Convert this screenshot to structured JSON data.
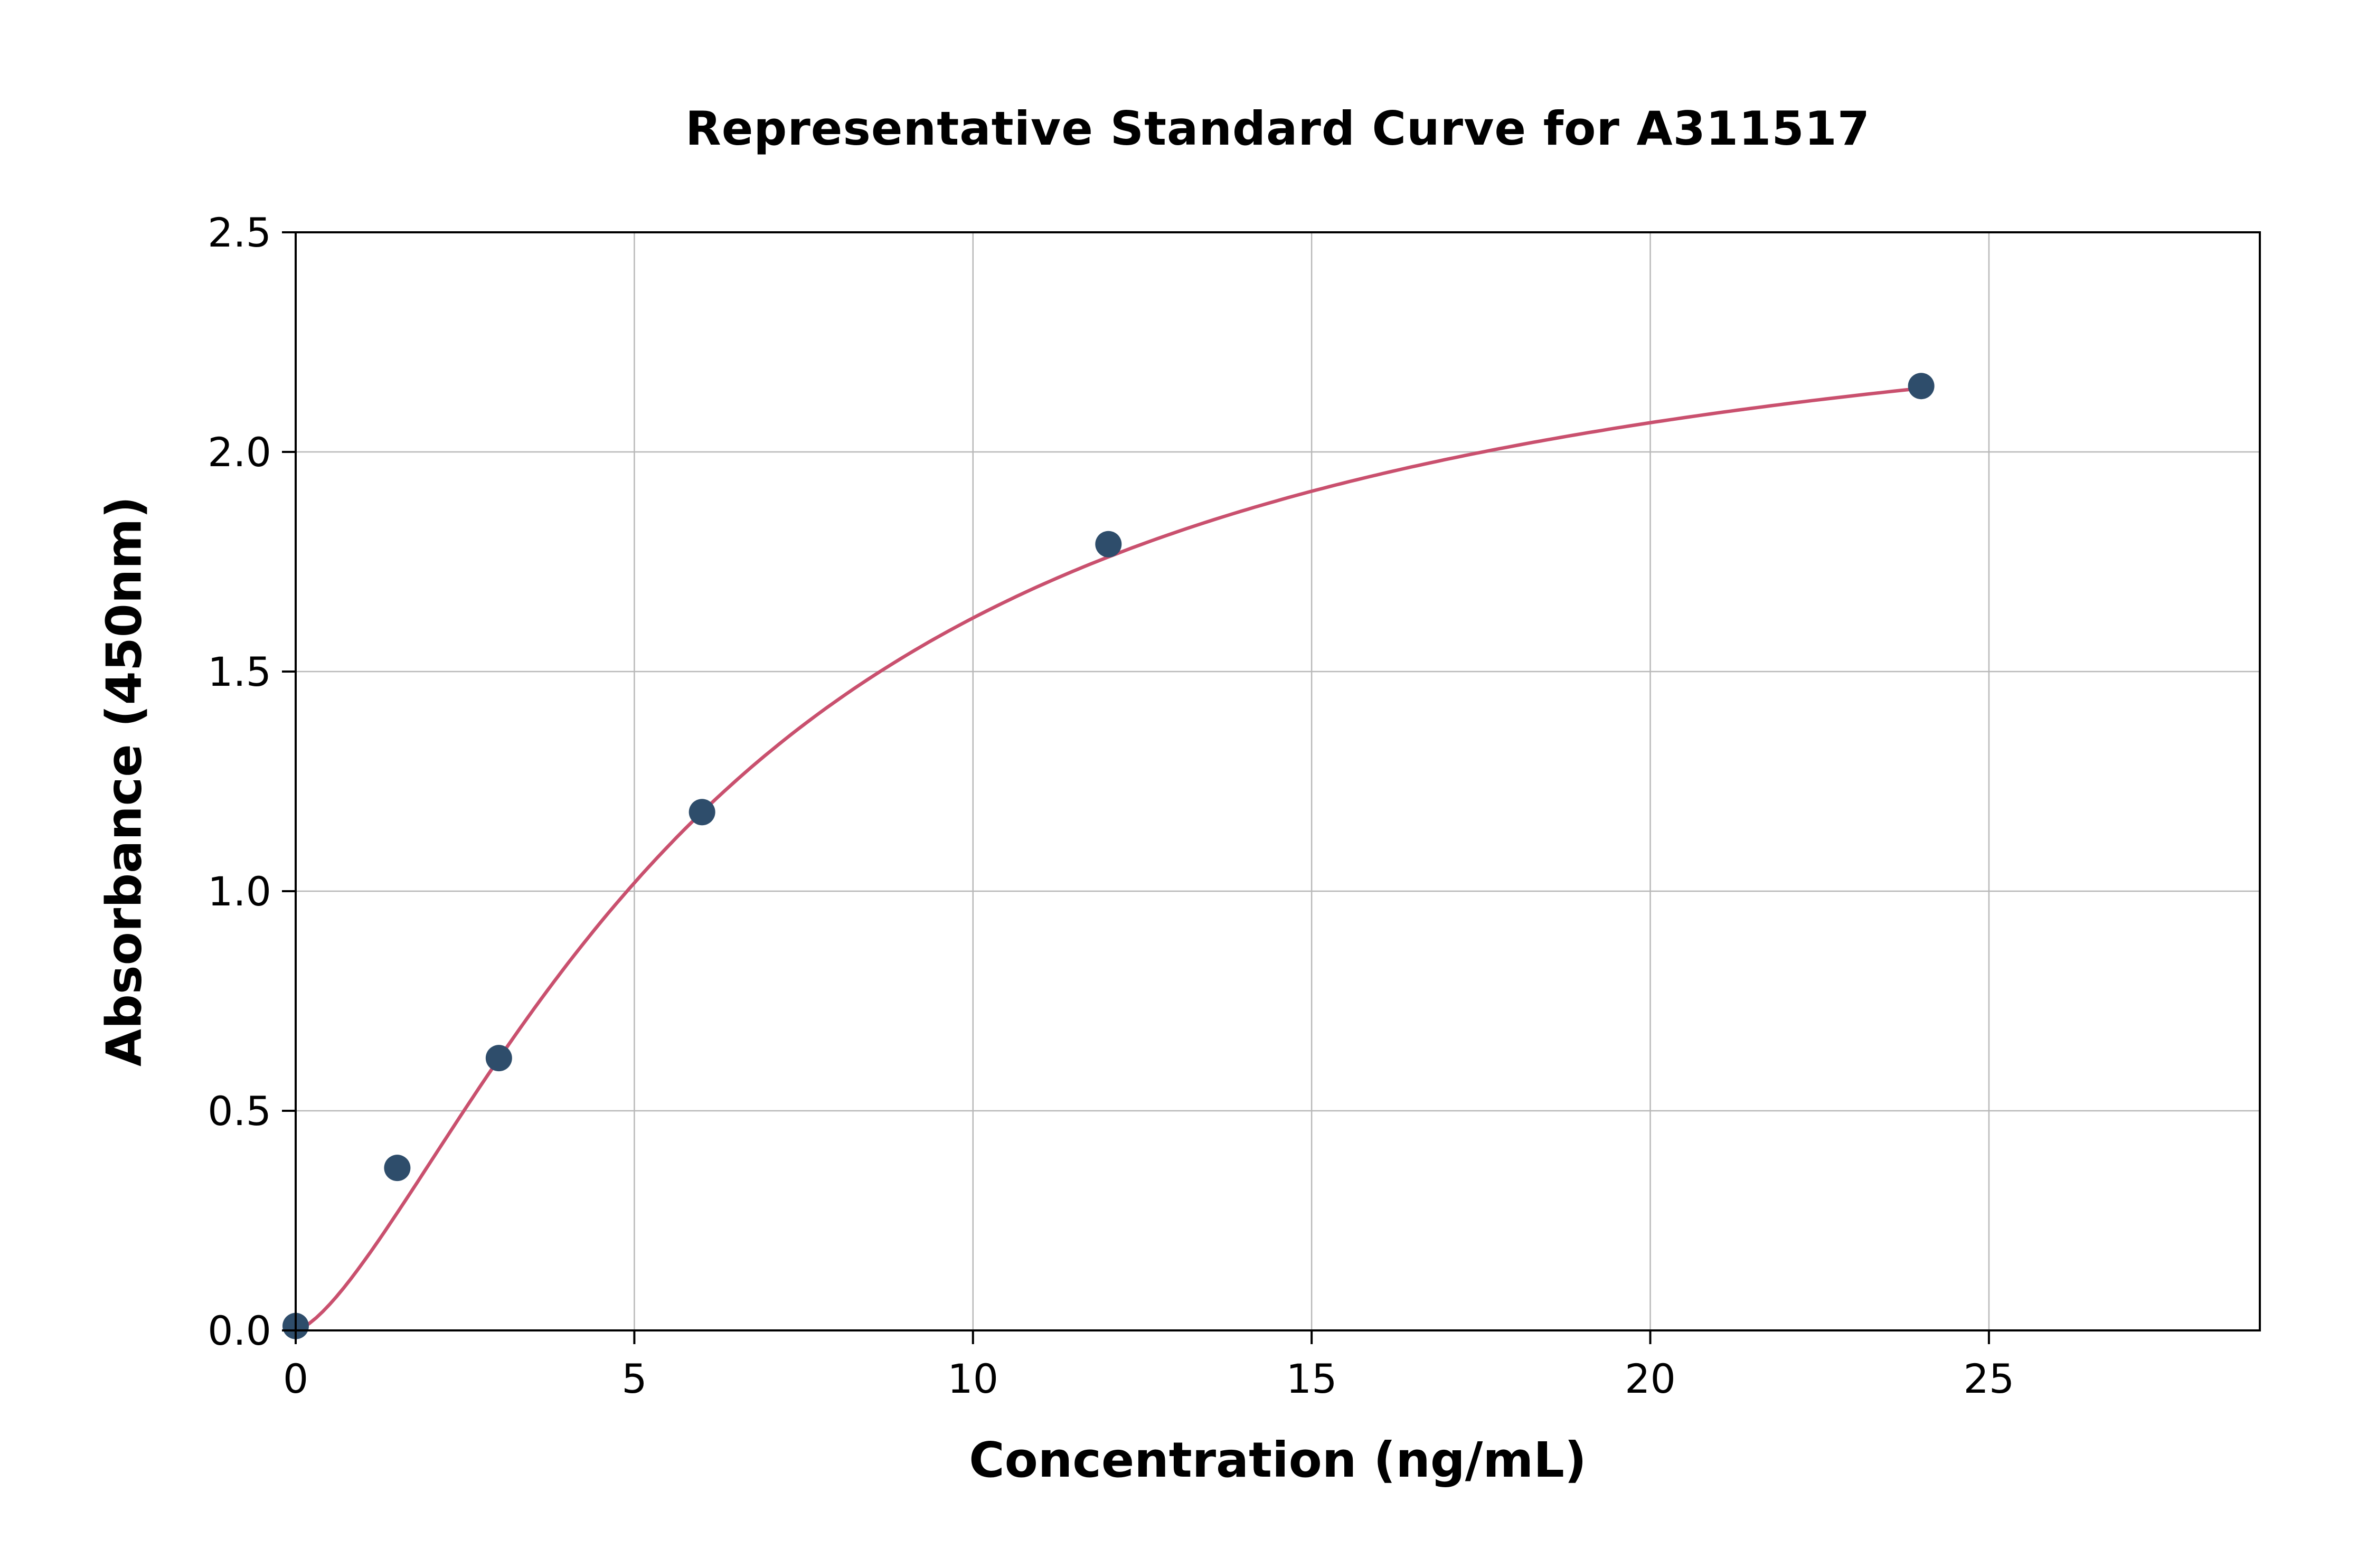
{
  "chart_data": {
    "type": "scatter",
    "title": "Representative Standard Curve for A311517",
    "xlabel": "Concentration (ng/mL)",
    "ylabel": "Absorbance (450nm)",
    "xlim": [
      0,
      29
    ],
    "ylim": [
      0,
      2.5
    ],
    "x_ticks": [
      0,
      5,
      10,
      15,
      20,
      25
    ],
    "x_tick_labels": [
      "0",
      "5",
      "10",
      "15",
      "20",
      "25"
    ],
    "y_ticks": [
      0,
      0.5,
      1.0,
      1.5,
      2.0,
      2.5
    ],
    "y_tick_labels": [
      "0.0",
      "0.5",
      "1.0",
      "1.5",
      "2.0",
      "2.5"
    ],
    "grid": true,
    "points": [
      {
        "x": 0,
        "y": 0.01
      },
      {
        "x": 1.5,
        "y": 0.37
      },
      {
        "x": 3,
        "y": 0.62
      },
      {
        "x": 6,
        "y": 1.18
      },
      {
        "x": 12,
        "y": 1.79
      },
      {
        "x": 24,
        "y": 2.15
      }
    ],
    "fit_curve": {
      "model": "4PL",
      "a": 0.0,
      "b": 1.46,
      "c": 6.31,
      "d": 2.45,
      "x_start": 0,
      "x_end": 24.1
    },
    "colors": {
      "point": "#2e4d6b",
      "curve": "#c9506e",
      "grid": "#b8b8b8",
      "spine": "#000000",
      "background": "#ffffff"
    },
    "legend": "none"
  }
}
